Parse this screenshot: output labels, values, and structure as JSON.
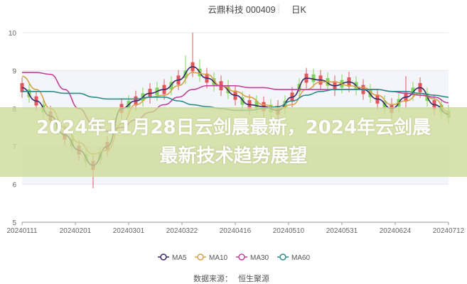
{
  "banner": {
    "title": "2024年11月28日云剑晨最新，2024年云剑晨最新技术趋势展望"
  },
  "chart_data": {
    "type": "candlestick",
    "title": "云鼎科技 000409",
    "period_tab": "日K",
    "source_label": "数据来源：",
    "source_name": "恒生聚源",
    "ylim": [
      5,
      10
    ],
    "y_ticks": [
      "5",
      "6",
      "7",
      "8",
      "9",
      "10"
    ],
    "x_ticks": [
      "20240111",
      "20240201",
      "20240301",
      "20240322",
      "20240416",
      "20240510",
      "20240531",
      "20240624",
      "20240712"
    ],
    "grid": true,
    "legend_position": "bottom",
    "colors": {
      "up": "#e0575b",
      "down": "#7fd45a",
      "MA5": "#3b2a6b",
      "MA10": "#d9a04a",
      "MA30": "#c0409a",
      "MA60": "#2e8b8b"
    },
    "candles_ohlc_note_order": [
      "open",
      "close",
      "low",
      "high"
    ],
    "candles": [
      [
        8.43,
        8.67,
        8.28,
        8.82
      ],
      [
        8.5,
        8.3,
        8.15,
        8.65
      ],
      [
        8.08,
        8.32,
        7.93,
        8.47
      ],
      [
        8.1,
        7.9,
        7.75,
        8.25
      ],
      [
        7.68,
        7.92,
        7.53,
        8.07
      ],
      [
        7.65,
        7.45,
        7.3,
        7.8
      ],
      [
        7.18,
        7.42,
        7.03,
        7.57
      ],
      [
        7.2,
        7.0,
        6.85,
        7.35
      ],
      [
        6.78,
        7.02,
        6.63,
        7.17
      ],
      [
        6.8,
        6.6,
        6.45,
        6.95
      ],
      [
        6.38,
        6.62,
        5.9,
        6.77
      ],
      [
        6.85,
        6.65,
        6.5,
        7.0
      ],
      [
        6.88,
        7.12,
        6.73,
        7.27
      ],
      [
        7.6,
        7.4,
        7.25,
        7.75
      ],
      [
        7.88,
        8.12,
        7.73,
        8.27
      ],
      [
        8.2,
        8.0,
        7.85,
        8.35
      ],
      [
        8.08,
        8.32,
        7.93,
        8.47
      ],
      [
        8.4,
        8.2,
        8.05,
        8.55
      ],
      [
        8.28,
        8.52,
        8.13,
        8.67
      ],
      [
        8.55,
        8.35,
        8.2,
        8.7
      ],
      [
        8.38,
        8.62,
        8.23,
        8.77
      ],
      [
        8.7,
        8.5,
        8.35,
        8.85
      ],
      [
        8.63,
        8.87,
        8.48,
        9.02
      ],
      [
        9.0,
        8.8,
        8.65,
        9.4
      ],
      [
        8.98,
        9.22,
        8.83,
        10.0
      ],
      [
        9.05,
        8.85,
        8.7,
        9.3
      ],
      [
        8.68,
        8.92,
        8.53,
        9.07
      ],
      [
        8.8,
        8.6,
        8.45,
        8.95
      ],
      [
        8.48,
        8.72,
        8.33,
        8.87
      ],
      [
        8.6,
        8.4,
        8.25,
        8.75
      ],
      [
        8.23,
        8.47,
        8.08,
        8.62
      ],
      [
        8.3,
        8.1,
        7.95,
        8.45
      ],
      [
        7.98,
        8.22,
        7.83,
        8.37
      ],
      [
        8.2,
        8.0,
        7.85,
        8.35
      ],
      [
        7.93,
        8.17,
        7.78,
        8.32
      ],
      [
        8.1,
        7.9,
        7.75,
        8.25
      ],
      [
        7.83,
        8.07,
        7.68,
        8.22
      ],
      [
        8.2,
        8.0,
        7.85,
        8.35
      ],
      [
        8.18,
        8.42,
        8.03,
        8.57
      ],
      [
        8.65,
        8.45,
        8.3,
        8.8
      ],
      [
        8.68,
        8.92,
        8.53,
        9.07
      ],
      [
        8.9,
        8.7,
        8.55,
        9.05
      ],
      [
        8.63,
        8.87,
        8.48,
        9.02
      ],
      [
        8.8,
        8.6,
        8.45,
        8.95
      ],
      [
        8.48,
        8.72,
        8.33,
        8.87
      ],
      [
        8.75,
        8.55,
        8.4,
        8.9
      ],
      [
        8.58,
        8.82,
        8.43,
        8.97
      ],
      [
        8.7,
        8.5,
        8.35,
        8.85
      ],
      [
        8.38,
        8.62,
        8.23,
        8.77
      ],
      [
        8.5,
        8.3,
        8.15,
        8.65
      ],
      [
        8.13,
        8.37,
        7.98,
        8.52
      ],
      [
        8.2,
        8.0,
        7.85,
        8.35
      ],
      [
        7.88,
        8.12,
        7.73,
        8.27
      ],
      [
        8.25,
        8.05,
        7.9,
        8.4
      ],
      [
        8.18,
        8.42,
        8.03,
        8.85
      ],
      [
        8.55,
        8.35,
        8.2,
        8.7
      ],
      [
        8.43,
        8.67,
        8.28,
        8.82
      ],
      [
        8.4,
        8.2,
        8.05,
        8.55
      ],
      [
        7.98,
        8.22,
        7.83,
        8.37
      ],
      [
        8.1,
        7.9,
        7.75,
        8.25
      ],
      [
        7.95,
        7.75,
        7.6,
        8.1
      ]
    ],
    "series": [
      {
        "name": "MA5",
        "values": [
          8.55,
          8.2,
          7.8,
          7.3,
          6.9,
          6.5,
          7.0,
          8.0,
          8.2,
          8.4,
          8.5,
          8.75,
          9.1,
          8.8,
          8.6,
          8.35,
          8.1,
          8.05,
          7.95,
          8.3,
          8.8,
          8.75,
          8.6,
          8.7,
          8.5,
          8.25,
          8.0,
          8.3,
          8.55,
          8.1,
          7.85
        ]
      },
      {
        "name": "MA10",
        "values": [
          8.85,
          8.5,
          8.0,
          7.5,
          7.1,
          6.8,
          6.9,
          7.6,
          8.1,
          8.3,
          8.35,
          8.6,
          8.95,
          8.9,
          8.6,
          8.45,
          8.3,
          8.1,
          8.0,
          8.1,
          8.5,
          8.7,
          8.7,
          8.6,
          8.55,
          8.35,
          8.1,
          8.2,
          8.4,
          8.25,
          7.9
        ]
      },
      {
        "name": "MA30",
        "values": [
          8.95,
          8.95,
          8.9,
          8.5,
          8.0,
          7.6,
          7.4,
          7.5,
          7.7,
          7.9,
          8.1,
          8.3,
          8.5,
          8.6,
          8.6,
          8.6,
          8.55,
          8.55,
          8.5,
          8.5,
          8.5,
          8.5,
          8.5,
          8.5,
          8.5,
          8.5,
          8.45,
          8.4,
          8.35,
          8.3,
          8.15
        ]
      },
      {
        "name": "MA60",
        "values": [
          8.45,
          8.45,
          8.45,
          8.4,
          8.4,
          8.3,
          8.25,
          8.25,
          8.25,
          8.3,
          8.3,
          8.2,
          8.1,
          8.05,
          8.0,
          7.95,
          7.95,
          8.0,
          8.05,
          8.2,
          8.35,
          8.45,
          8.5,
          8.5,
          8.5,
          8.5,
          8.45,
          8.45,
          8.4,
          8.35,
          8.3
        ]
      }
    ]
  }
}
